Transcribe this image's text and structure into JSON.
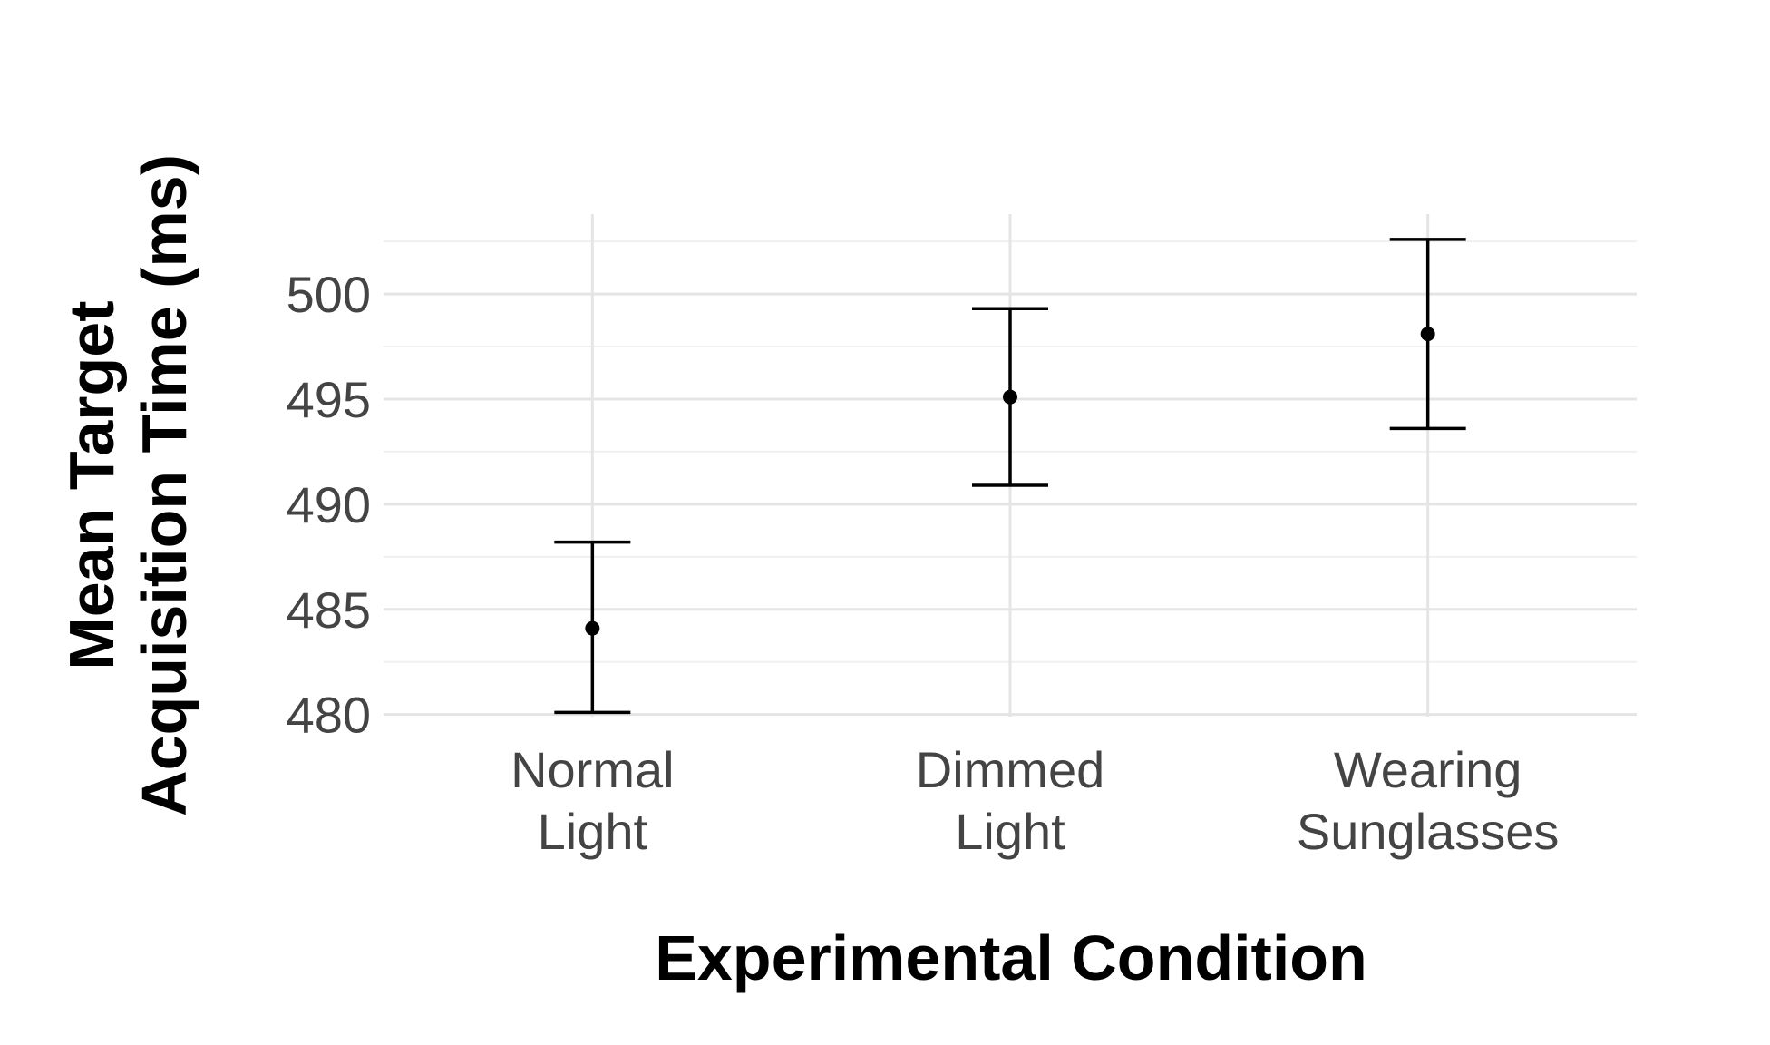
{
  "chart_data": {
    "type": "scatter",
    "title": "",
    "xlabel": "Experimental Condition",
    "ylabel_lines": [
      "Mean Target",
      "Acquisition Time (ms)"
    ],
    "categories": [
      [
        "Normal",
        "Light"
      ],
      [
        "Dimmed",
        "Light"
      ],
      [
        "Wearing",
        "Sunglasses"
      ]
    ],
    "points": [
      {
        "mean": 484.1,
        "lower": 480.1,
        "upper": 488.2
      },
      {
        "mean": 495.1,
        "lower": 490.9,
        "upper": 499.3
      },
      {
        "mean": 498.1,
        "lower": 493.6,
        "upper": 502.6
      }
    ],
    "yticks": [
      480,
      485,
      490,
      495,
      500
    ],
    "ylim": [
      479.9,
      503.8
    ],
    "grid": true,
    "legend": "none"
  }
}
